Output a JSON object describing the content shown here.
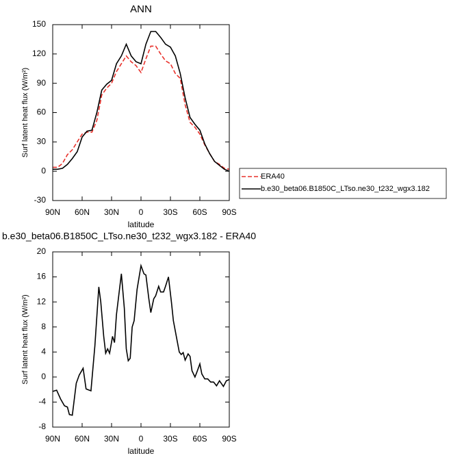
{
  "chart_data": [
    {
      "type": "line",
      "title": "ANN",
      "xlabel": "latitude",
      "ylabel": "Surf latent heat flux (W/m²)",
      "x": [
        90,
        85,
        80,
        75,
        70,
        65,
        60,
        55,
        50,
        45,
        40,
        35,
        30,
        25,
        20,
        15,
        10,
        5,
        0,
        -5,
        -10,
        -15,
        -20,
        -25,
        -30,
        -35,
        -40,
        -45,
        -50,
        -55,
        -60,
        -65,
        -70,
        -75,
        -80,
        -85,
        -90
      ],
      "series": [
        {
          "name": "ERA40",
          "color": "#e8302a",
          "dash": true,
          "values": [
            4,
            4,
            8,
            17,
            22,
            30,
            38,
            40,
            40,
            52,
            78,
            85,
            90,
            102,
            110,
            118,
            112,
            108,
            101,
            115,
            128,
            128,
            120,
            113,
            110,
            100,
            95,
            68,
            50,
            45,
            38,
            27,
            18,
            10,
            7,
            3,
            2
          ]
        },
        {
          "name": "b.e30_beta06.B1850C_LTso.ne30_t232_wgx3.182",
          "color": "#000000",
          "dash": false,
          "values": [
            2,
            2,
            3,
            7,
            13,
            20,
            35,
            41,
            42,
            60,
            83,
            89,
            93,
            110,
            118,
            130,
            118,
            112,
            110,
            130,
            143,
            143,
            137,
            130,
            127,
            118,
            100,
            75,
            55,
            48,
            42,
            28,
            18,
            10,
            6,
            2,
            0
          ]
        }
      ],
      "xlim": [
        90,
        -90
      ],
      "xticks": [
        {
          "value": 90,
          "label": "90N"
        },
        {
          "value": 60,
          "label": "60N"
        },
        {
          "value": 30,
          "label": "30N"
        },
        0,
        {
          "value": -30,
          "label": "30S"
        },
        {
          "value": -60,
          "label": "60S"
        },
        {
          "value": -90,
          "label": "90S"
        }
      ],
      "ylim": [
        -30,
        150
      ],
      "yticks": [
        -30,
        0,
        30,
        60,
        90,
        120,
        150
      ]
    },
    {
      "type": "line",
      "title": "b.e30_beta06.B1850C_LTso.ne30_t232_wgx3.182 - ERA40",
      "xlabel": "latitude",
      "ylabel": "Surf latent heat flux (W/m²)",
      "x": [
        90,
        86,
        82,
        78,
        75,
        73,
        70,
        66,
        63,
        59,
        56,
        51,
        47,
        43,
        41,
        38,
        36,
        34,
        32,
        29,
        27,
        25,
        20,
        17,
        15,
        13,
        11,
        9,
        7,
        4,
        0,
        -3,
        -5,
        -8,
        -10,
        -13,
        -15,
        -18,
        -20,
        -23,
        -25,
        -28,
        -31,
        -33,
        -36,
        -39,
        -41,
        -43,
        -45,
        -48,
        -50,
        -52,
        -55,
        -57,
        -60,
        -62,
        -65,
        -68,
        -71,
        -74,
        -77,
        -80,
        -84,
        -87,
        -90
      ],
      "values": [
        -2.3,
        -2.1,
        -3.5,
        -4.6,
        -4.8,
        -6,
        -6.1,
        -1,
        0.3,
        1.4,
        -1.9,
        -2.2,
        5,
        14.4,
        12,
        6.5,
        3.8,
        4.5,
        3.8,
        6.5,
        5.5,
        10,
        16.5,
        11,
        4.5,
        2.6,
        3,
        8,
        9,
        14,
        17.8,
        16.5,
        16.3,
        12.5,
        10.3,
        12.5,
        13,
        14.5,
        13.6,
        13.6,
        14.5,
        16,
        12,
        9,
        6.5,
        4,
        3.6,
        3.9,
        2.7,
        3.7,
        3.3,
        1,
        0,
        0.8,
        2.1,
        0.5,
        -0.3,
        -0.3,
        -0.8,
        -0.8,
        -1.4,
        -0.6,
        -1.5,
        -0.6,
        -0.4
      ],
      "color": "#000000",
      "xlim": [
        90,
        -90
      ],
      "xticks": [
        {
          "value": 90,
          "label": "90N"
        },
        {
          "value": 60,
          "label": "60N"
        },
        {
          "value": 30,
          "label": "30N"
        },
        0,
        {
          "value": -30,
          "label": "30S"
        },
        {
          "value": -60,
          "label": "60S"
        },
        {
          "value": -90,
          "label": "90S"
        }
      ],
      "ylim": [
        -8,
        20
      ],
      "yticks": [
        -8,
        -4,
        0,
        4,
        8,
        12,
        16,
        20
      ]
    }
  ]
}
